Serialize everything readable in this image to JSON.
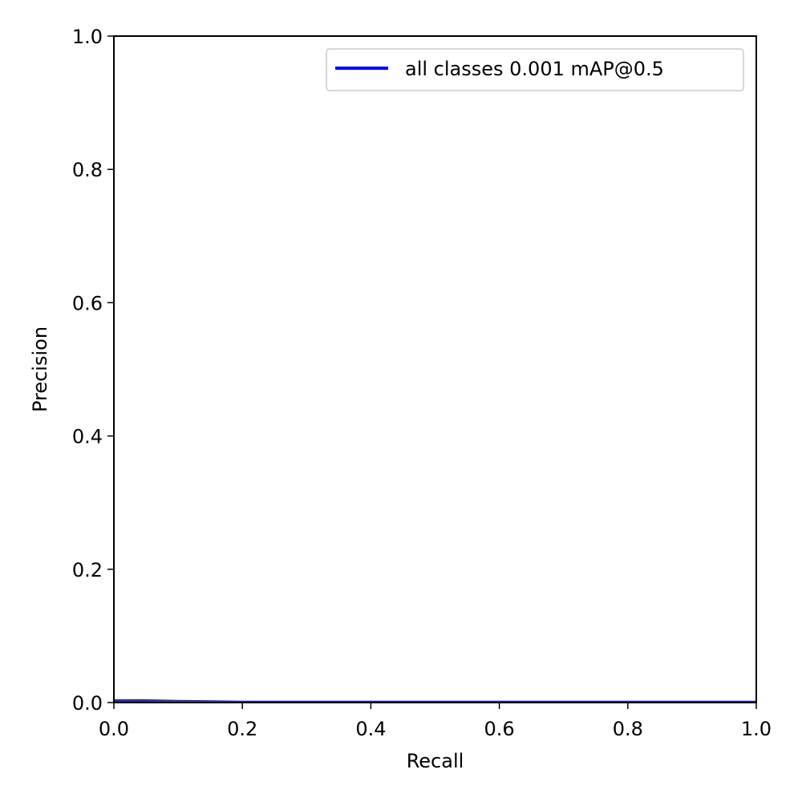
{
  "chart_data": {
    "type": "line",
    "title": "",
    "xlabel": "Recall",
    "ylabel": "Precision",
    "xlim": [
      0,
      1
    ],
    "ylim": [
      0,
      1
    ],
    "xticks": [
      "0.0",
      "0.2",
      "0.4",
      "0.6",
      "0.8",
      "1.0"
    ],
    "yticks": [
      "0.0",
      "0.2",
      "0.4",
      "0.6",
      "0.8",
      "1.0"
    ],
    "grid": false,
    "legend_position": "top-right",
    "series": [
      {
        "name": "all classes 0.001 mAP@0.5",
        "color": "#0000ff",
        "x": [
          0.0,
          0.05,
          0.1,
          0.2,
          0.4,
          0.6,
          0.8,
          1.0
        ],
        "y": [
          0.003,
          0.003,
          0.002,
          0.001,
          0.001,
          0.001,
          0.001,
          0.001
        ]
      },
      {
        "name": "",
        "color": "#4b4b4b",
        "x": [
          0.0,
          0.1,
          0.2,
          0.4,
          0.6,
          0.8,
          1.0
        ],
        "y": [
          0.003,
          0.002,
          0.001,
          0.001,
          0.001,
          0.001,
          0.001
        ]
      }
    ]
  }
}
